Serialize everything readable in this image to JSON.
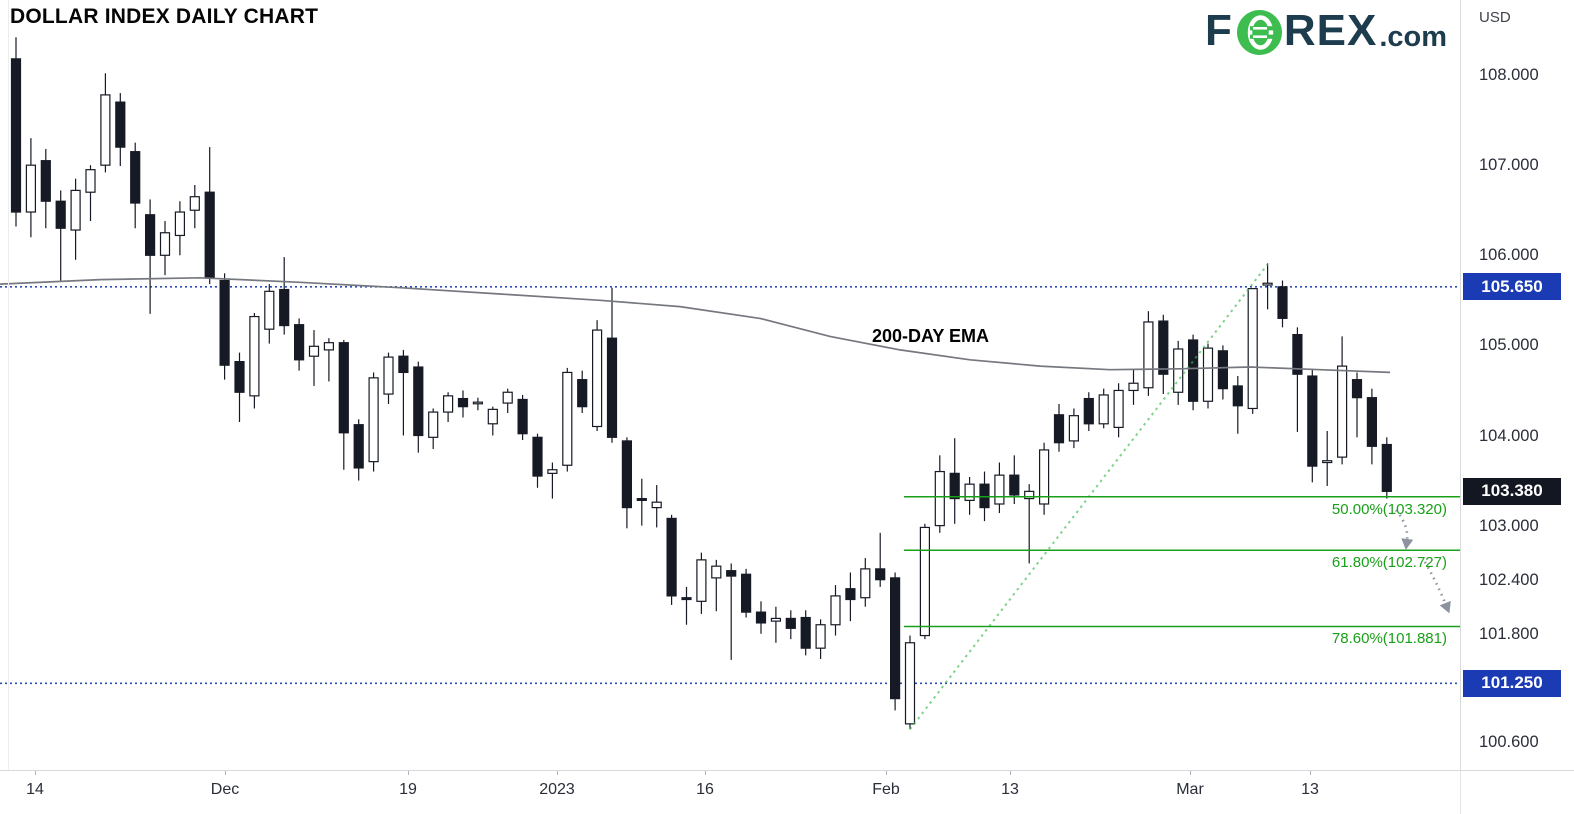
{
  "window": {
    "title": "DOLLAR INDEX DAILY CHART"
  },
  "logo": {
    "f": "F",
    "rex": "REX",
    "dotcom": ".com"
  },
  "axis_currency": "USD",
  "colors": {
    "candle_down": "#161a25",
    "candle_up_fill": "#ffffff",
    "candle_border": "#161a25",
    "ema_line": "#75787f",
    "fib_green": "#18a018",
    "trendline_green": "#3dbb4e",
    "level_blue": "#2a4db9",
    "badge_blue": "#1a3bb3",
    "badge_dark": "#131722",
    "arrow_gray": "#8d939e",
    "logo_teal": "#1d3c4d",
    "logo_green": "#3dbd4f"
  },
  "chart_data": {
    "type": "candlestick",
    "title": "DOLLAR INDEX DAILY CHART",
    "ylim": [
      100.288,
      108.833
    ],
    "plot_size": [
      1460,
      770
    ],
    "x0": 16,
    "dx": 14.9,
    "candle_width": 9,
    "y_ticks": [
      {
        "label": "108.000",
        "value": 108.0
      },
      {
        "label": "107.000",
        "value": 107.0
      },
      {
        "label": "106.000",
        "value": 106.0
      },
      {
        "label": "105.000",
        "value": 105.0
      },
      {
        "label": "104.000",
        "value": 104.0
      },
      {
        "label": "103.000",
        "value": 103.0
      },
      {
        "label": "102.400",
        "value": 102.4
      },
      {
        "label": "101.800",
        "value": 101.8
      },
      {
        "label": "100.600",
        "value": 100.6
      }
    ],
    "x_ticks": [
      {
        "label": "14",
        "x": 35
      },
      {
        "label": "Dec",
        "x": 225
      },
      {
        "label": "19",
        "x": 408
      },
      {
        "label": "2023",
        "x": 557
      },
      {
        "label": "16",
        "x": 705
      },
      {
        "label": "Feb",
        "x": 886
      },
      {
        "label": "13",
        "x": 1010
      },
      {
        "label": "Mar",
        "x": 1190
      },
      {
        "label": "13",
        "x": 1310
      }
    ],
    "price_lines": [
      {
        "label": "105.650",
        "value": 105.65,
        "dotted_line": true,
        "badge": "blue"
      },
      {
        "label": "103.380",
        "value": 103.38,
        "dotted_line": false,
        "badge": "dark"
      },
      {
        "label": "101.250",
        "value": 101.25,
        "dotted_line": true,
        "badge": "blue"
      }
    ],
    "fib_levels": [
      {
        "label": "50.00%(103.320)",
        "value": 103.32
      },
      {
        "label": "61.80%(102.727)",
        "value": 102.727
      },
      {
        "label": "78.60%(101.881)",
        "value": 101.881
      }
    ],
    "fib_start_index": 60,
    "trendline": {
      "from_index": 60,
      "from_price": 100.74,
      "to_index": 84,
      "to_price": 105.9
    },
    "ema": {
      "label": "200-DAY EMA",
      "points": [
        [
          0,
          105.68
        ],
        [
          100,
          105.73
        ],
        [
          200,
          105.75
        ],
        [
          300,
          105.7
        ],
        [
          400,
          105.64
        ],
        [
          500,
          105.57
        ],
        [
          600,
          105.5
        ],
        [
          680,
          105.43
        ],
        [
          760,
          105.3
        ],
        [
          830,
          105.1
        ],
        [
          900,
          104.95
        ],
        [
          970,
          104.84
        ],
        [
          1040,
          104.77
        ],
        [
          1110,
          104.73
        ],
        [
          1180,
          104.74
        ],
        [
          1250,
          104.76
        ],
        [
          1320,
          104.73
        ],
        [
          1390,
          104.7
        ]
      ]
    },
    "arrows": [
      {
        "from": [
          1396,
          510
        ],
        "ctrl": [
          1409,
          526
        ],
        "to": [
          1407,
          541
        ]
      },
      {
        "from": [
          1425,
          562
        ],
        "ctrl": [
          1437,
          583
        ],
        "to": [
          1446,
          605
        ]
      }
    ],
    "candles": [
      [
        108.18,
        108.42,
        106.32,
        106.48
      ],
      [
        106.48,
        107.3,
        106.2,
        107.0
      ],
      [
        107.05,
        107.18,
        106.3,
        106.6
      ],
      [
        106.6,
        106.72,
        105.72,
        106.3
      ],
      [
        106.28,
        106.85,
        105.95,
        106.72
      ],
      [
        106.7,
        107.0,
        106.38,
        106.95
      ],
      [
        107.0,
        108.02,
        106.92,
        107.78
      ],
      [
        107.7,
        107.8,
        106.99,
        107.2
      ],
      [
        107.15,
        107.25,
        106.3,
        106.58
      ],
      [
        106.45,
        106.62,
        105.35,
        106.0
      ],
      [
        106.0,
        106.38,
        105.78,
        106.25
      ],
      [
        106.22,
        106.6,
        106.0,
        106.48
      ],
      [
        106.5,
        106.78,
        106.3,
        106.65
      ],
      [
        106.7,
        107.2,
        105.68,
        105.75
      ],
      [
        105.72,
        105.8,
        104.62,
        104.78
      ],
      [
        104.82,
        104.92,
        104.15,
        104.48
      ],
      [
        104.44,
        105.36,
        104.3,
        105.32
      ],
      [
        105.18,
        105.68,
        105.02,
        105.6
      ],
      [
        105.62,
        105.98,
        105.12,
        105.22
      ],
      [
        105.23,
        105.3,
        104.72,
        104.84
      ],
      [
        104.88,
        105.17,
        104.55,
        104.99
      ],
      [
        104.95,
        105.08,
        104.6,
        105.03
      ],
      [
        105.03,
        105.06,
        103.62,
        104.03
      ],
      [
        104.12,
        104.18,
        103.5,
        103.64
      ],
      [
        103.71,
        104.7,
        103.6,
        104.64
      ],
      [
        104.46,
        104.92,
        104.35,
        104.87
      ],
      [
        104.88,
        104.95,
        104.0,
        104.7
      ],
      [
        104.76,
        104.82,
        103.81,
        104.0
      ],
      [
        103.98,
        104.3,
        103.85,
        104.26
      ],
      [
        104.26,
        104.48,
        104.15,
        104.44
      ],
      [
        104.41,
        104.5,
        104.2,
        104.32
      ],
      [
        104.36,
        104.42,
        104.28,
        104.37
      ],
      [
        104.13,
        104.32,
        104.0,
        104.29
      ],
      [
        104.36,
        104.52,
        104.25,
        104.48
      ],
      [
        104.4,
        104.45,
        103.95,
        104.02
      ],
      [
        103.98,
        104.02,
        103.42,
        103.55
      ],
      [
        103.58,
        103.7,
        103.3,
        103.62
      ],
      [
        103.67,
        104.75,
        103.6,
        104.7
      ],
      [
        104.62,
        104.72,
        104.25,
        104.32
      ],
      [
        104.1,
        105.28,
        104.05,
        105.17
      ],
      [
        105.08,
        105.64,
        103.92,
        103.98
      ],
      [
        103.94,
        103.98,
        102.97,
        103.2
      ],
      [
        103.3,
        103.52,
        103.0,
        103.28
      ],
      [
        103.2,
        103.45,
        102.98,
        103.26
      ],
      [
        103.08,
        103.12,
        102.12,
        102.22
      ],
      [
        102.2,
        102.32,
        101.9,
        102.18
      ],
      [
        102.16,
        102.7,
        102.02,
        102.62
      ],
      [
        102.42,
        102.62,
        102.05,
        102.55
      ],
      [
        102.5,
        102.58,
        101.51,
        102.44
      ],
      [
        102.46,
        102.52,
        101.98,
        102.04
      ],
      [
        102.04,
        102.16,
        101.8,
        101.92
      ],
      [
        101.94,
        102.1,
        101.7,
        101.97
      ],
      [
        101.97,
        102.06,
        101.74,
        101.86
      ],
      [
        101.98,
        102.06,
        101.56,
        101.64
      ],
      [
        101.64,
        101.96,
        101.52,
        101.9
      ],
      [
        101.9,
        102.34,
        101.78,
        102.22
      ],
      [
        102.3,
        102.48,
        101.94,
        102.18
      ],
      [
        102.2,
        102.64,
        102.1,
        102.52
      ],
      [
        102.52,
        102.92,
        102.32,
        102.4
      ],
      [
        102.42,
        102.48,
        100.95,
        101.08
      ],
      [
        100.8,
        101.78,
        100.74,
        101.7
      ],
      [
        101.78,
        103.02,
        101.74,
        102.98
      ],
      [
        103.0,
        103.78,
        102.92,
        103.6
      ],
      [
        103.58,
        103.97,
        103.02,
        103.3
      ],
      [
        103.28,
        103.54,
        103.12,
        103.46
      ],
      [
        103.46,
        103.6,
        103.05,
        103.2
      ],
      [
        103.24,
        103.7,
        103.14,
        103.56
      ],
      [
        103.56,
        103.78,
        103.24,
        103.34
      ],
      [
        103.3,
        103.46,
        102.58,
        103.38
      ],
      [
        103.24,
        103.92,
        103.12,
        103.84
      ],
      [
        104.23,
        104.35,
        103.82,
        103.92
      ],
      [
        103.94,
        104.3,
        103.86,
        104.22
      ],
      [
        104.41,
        104.48,
        104.05,
        104.13
      ],
      [
        104.13,
        104.52,
        104.08,
        104.45
      ],
      [
        104.09,
        104.58,
        103.98,
        104.5
      ],
      [
        104.5,
        104.74,
        104.34,
        104.58
      ],
      [
        104.53,
        105.38,
        104.44,
        105.26
      ],
      [
        105.27,
        105.34,
        104.46,
        104.68
      ],
      [
        104.48,
        105.05,
        104.34,
        104.96
      ],
      [
        105.06,
        105.12,
        104.28,
        104.38
      ],
      [
        104.38,
        105.02,
        104.3,
        104.97
      ],
      [
        104.94,
        105.0,
        104.4,
        104.52
      ],
      [
        104.55,
        104.66,
        104.02,
        104.33
      ],
      [
        104.3,
        105.63,
        104.24,
        105.63
      ],
      [
        105.67,
        105.91,
        105.4,
        105.69
      ],
      [
        105.65,
        105.72,
        105.2,
        105.3
      ],
      [
        105.12,
        105.2,
        104.04,
        104.68
      ],
      [
        104.66,
        104.74,
        103.48,
        103.66
      ],
      [
        103.7,
        104.05,
        103.44,
        103.72
      ],
      [
        103.76,
        105.1,
        103.68,
        104.77
      ],
      [
        104.62,
        104.7,
        103.98,
        104.42
      ],
      [
        104.42,
        104.52,
        103.68,
        103.88
      ],
      [
        103.9,
        103.98,
        103.3,
        103.38
      ]
    ]
  }
}
